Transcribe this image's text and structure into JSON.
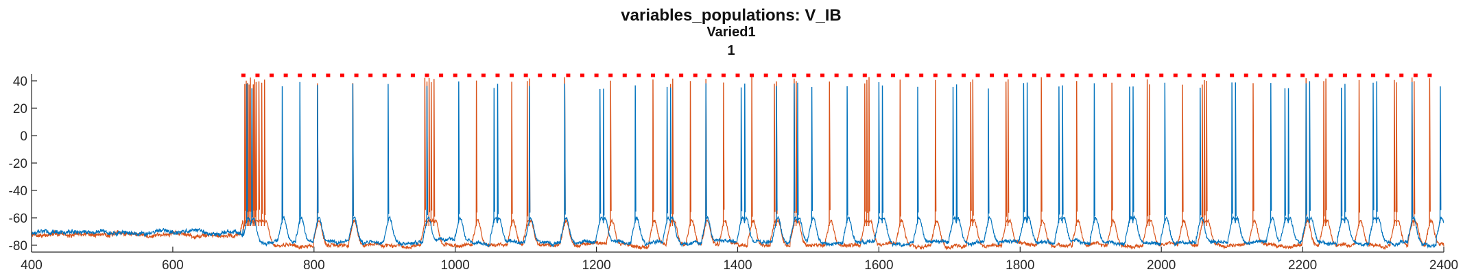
{
  "chart_data": {
    "type": "line",
    "title": "variables_populations: V_IB",
    "subtitle": "Varied1",
    "subtitle2": "1",
    "xlabel": "",
    "ylabel": "",
    "xlim": [
      400,
      2400
    ],
    "ylim": [
      -85,
      45
    ],
    "grid": false,
    "x_ticks": [
      400,
      600,
      800,
      1000,
      1200,
      1400,
      1600,
      1800,
      2000,
      2200,
      2400
    ],
    "y_ticks": [
      -80,
      -60,
      -40,
      -20,
      0,
      20,
      40
    ],
    "x_tick_labels": [
      "400",
      "600",
      "800",
      "1000",
      "1200",
      "1400",
      "1600",
      "1800",
      "2000",
      "2200",
      "2400"
    ],
    "y_tick_labels": [
      "-80",
      "-60",
      "-40",
      "-20",
      "0",
      "20",
      "40"
    ],
    "colors": {
      "series1": "#0072BD",
      "series2": "#D95319",
      "markers": "#FF0000"
    },
    "marker_y": 44,
    "marker_x": [
      700,
      720,
      740,
      760,
      780,
      800,
      820,
      840,
      860,
      880,
      900,
      920,
      940,
      960,
      980,
      1000,
      1020,
      1040,
      1060,
      1080,
      1100,
      1120,
      1140,
      1160,
      1180,
      1200,
      1220,
      1240,
      1260,
      1280,
      1300,
      1320,
      1340,
      1360,
      1380,
      1400,
      1420,
      1440,
      1460,
      1480,
      1500,
      1520,
      1540,
      1560,
      1580,
      1600,
      1620,
      1640,
      1660,
      1680,
      1700,
      1720,
      1740,
      1760,
      1780,
      1800,
      1820,
      1840,
      1860,
      1880,
      1900,
      1920,
      1940,
      1960,
      1980,
      2000,
      2020,
      2040,
      2060,
      2080,
      2100,
      2120,
      2140,
      2160,
      2180,
      2200,
      2220,
      2240,
      2260,
      2280,
      2300,
      2320,
      2340,
      2360,
      2380
    ],
    "series": [
      {
        "baseline_pre_700": -71,
        "baseline_post_700": -78,
        "spike_peak": 40,
        "spike_x": [
          705,
          712,
          755,
          780,
          805,
          855,
          905,
          960,
          1005,
          1055,
          1060,
          1105,
          1155,
          1205,
          1210,
          1255,
          1300,
          1305,
          1355,
          1405,
          1410,
          1455,
          1480,
          1485,
          1505,
          1555,
          1600,
          1605,
          1655,
          1705,
          1710,
          1755,
          1805,
          1810,
          1855,
          1860,
          1905,
          1955,
          1960,
          2005,
          2055,
          2100,
          2105,
          2155,
          2175,
          2180,
          2205,
          2210,
          2255,
          2260,
          2300,
          2305,
          2355,
          2395
        ]
      },
      {
        "baseline_pre_700": -72,
        "baseline_post_700": -80,
        "spike_peak": 43,
        "spike_x": [
          702,
          704,
          706,
          708,
          710,
          714,
          716,
          718,
          722,
          726,
          730,
          805,
          855,
          957,
          960,
          963,
          966,
          970,
          1030,
          1080,
          1102,
          1105,
          1155,
          1220,
          1280,
          1305,
          1308,
          1333,
          1355,
          1380,
          1420,
          1452,
          1455,
          1480,
          1483,
          1530,
          1580,
          1583,
          1586,
          1630,
          1680,
          1730,
          1733,
          1780,
          1783,
          1830,
          1880,
          1930,
          1980,
          1983,
          2030,
          2058,
          2061,
          2064,
          2130,
          2205,
          2230,
          2233,
          2280,
          2330,
          2333,
          2355,
          2358,
          2380
        ]
      }
    ]
  }
}
